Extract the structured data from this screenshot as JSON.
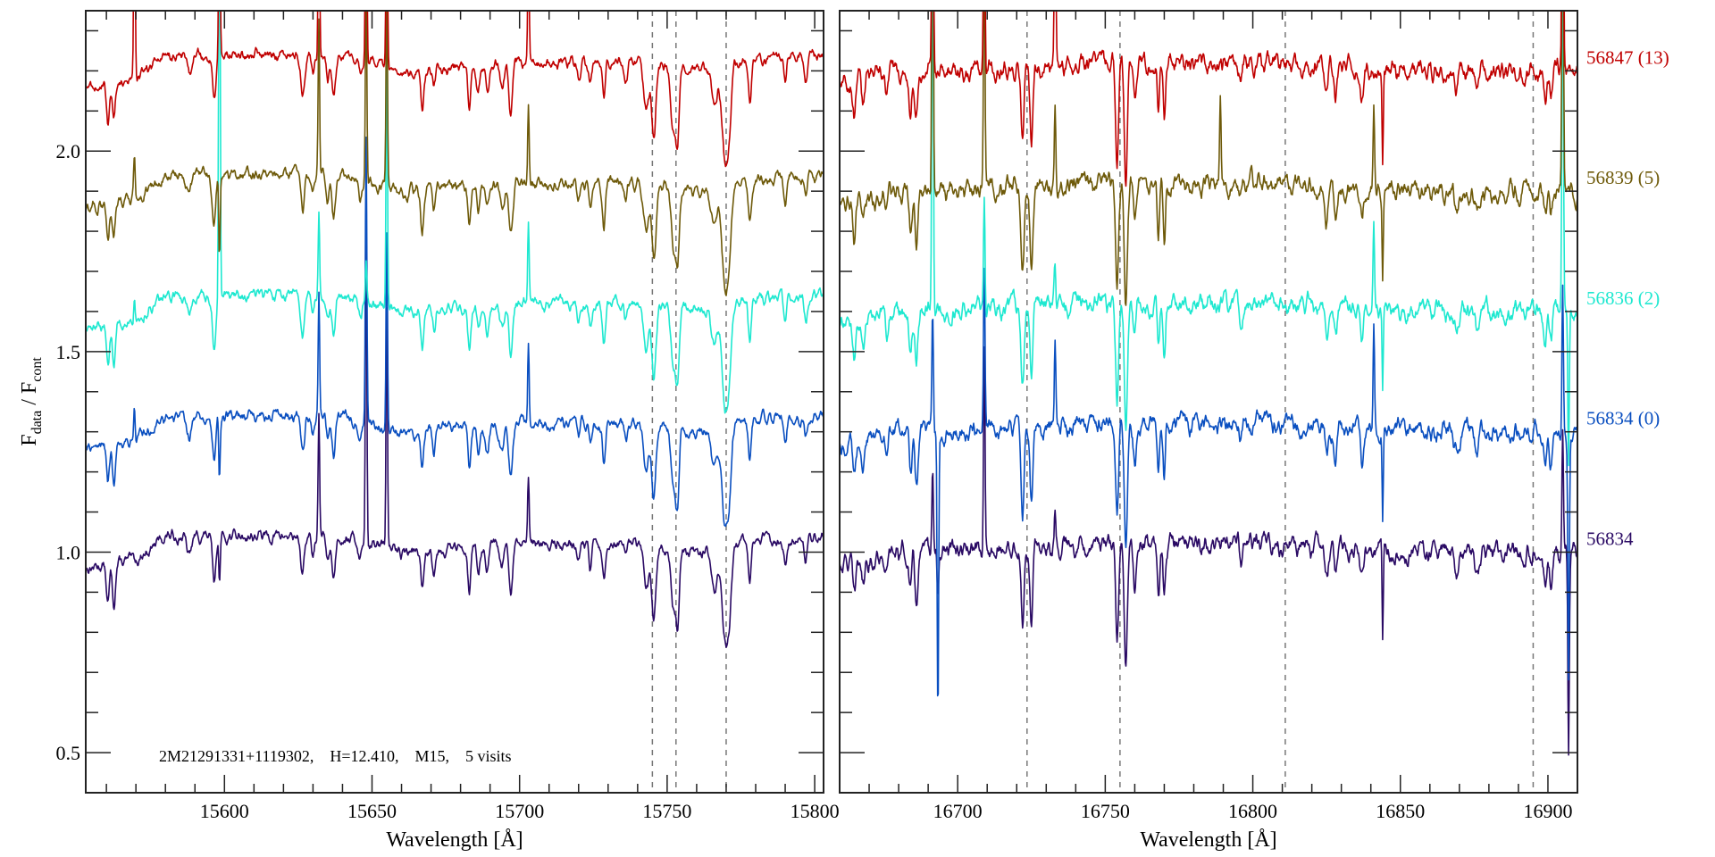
{
  "chart_data": {
    "type": "line",
    "title": "",
    "annotation": "2M21291331+1119302,    H=12.410,    M15,    5 visits",
    "ylabel": {
      "main": "F",
      "sub1": "data",
      "sep": " / F",
      "sub2": "cont"
    },
    "ylim": [
      0.4,
      2.35
    ],
    "yticks_major": [
      0.5,
      1.0,
      1.5,
      2.0
    ],
    "ytick_labels": [
      "0.5",
      "1.0",
      "1.5",
      "2.0"
    ],
    "ytick_minor_step": 0.1,
    "grid": false,
    "legend_placement": "right, beside each spectrum",
    "series": [
      {
        "name": "56834",
        "color": "#2a0a64",
        "offset": 0.0
      },
      {
        "name": "56834 (0)",
        "color": "#0a4fc0",
        "offset": 0.3
      },
      {
        "name": "56836 (2)",
        "color": "#1ee8d0",
        "offset": 0.6
      },
      {
        "name": "56839 (5)",
        "color": "#6e5a0a",
        "offset": 0.9
      },
      {
        "name": "56847 (13)",
        "color": "#c00000",
        "offset": 1.2
      }
    ],
    "panels": [
      {
        "xlabel": "Wavelength [Å]",
        "xlim": [
          15553,
          15803
        ],
        "xticks_major": [
          15600,
          15650,
          15700,
          15750,
          15800
        ],
        "xtick_labels": [
          "15600",
          "15650",
          "15700",
          "15750",
          "15800"
        ],
        "xtick_minor_step": 10,
        "show_ytick_labels": true,
        "dashed_lines": [
          15745,
          15753,
          15770
        ],
        "continuum": [
          [
            15553,
            0.96
          ],
          [
            15570,
            0.98
          ],
          [
            15580,
            1.04
          ],
          [
            15600,
            1.04
          ],
          [
            15640,
            1.04
          ],
          [
            15660,
            1.0
          ],
          [
            15700,
            1.02
          ],
          [
            15740,
            1.02
          ],
          [
            15760,
            1.0
          ],
          [
            15780,
            1.03
          ],
          [
            15803,
            1.04
          ]
        ],
        "absorption_lines": [
          [
            15560.5,
            0.1,
            0.5
          ],
          [
            15562.5,
            0.1,
            0.5
          ],
          [
            15588,
            0.05,
            0.8
          ],
          [
            15596.5,
            0.12,
            0.6
          ],
          [
            15626.5,
            0.1,
            0.6
          ],
          [
            15630,
            0.05,
            0.5
          ],
          [
            15635,
            0.06,
            0.5
          ],
          [
            15637,
            0.1,
            0.6
          ],
          [
            15646,
            0.04,
            0.6
          ],
          [
            15667,
            0.1,
            0.5
          ],
          [
            15671,
            0.05,
            0.5
          ],
          [
            15683,
            0.1,
            0.5
          ],
          [
            15686,
            0.06,
            0.5
          ],
          [
            15689,
            0.07,
            0.6
          ],
          [
            15694,
            0.06,
            0.7
          ],
          [
            15697,
            0.13,
            0.6
          ],
          [
            15720,
            0.04,
            0.5
          ],
          [
            15724,
            0.06,
            0.5
          ],
          [
            15728.6,
            0.1,
            0.5
          ],
          [
            15736,
            0.04,
            0.5
          ],
          [
            15743,
            0.12,
            0.9
          ],
          [
            15745.5,
            0.18,
            0.7
          ],
          [
            15752,
            0.14,
            0.7
          ],
          [
            15753.5,
            0.18,
            0.6
          ],
          [
            15766,
            0.1,
            1.0
          ],
          [
            15769.5,
            0.22,
            1.0
          ],
          [
            15771,
            0.14,
            0.8
          ],
          [
            15778,
            0.1,
            0.5
          ],
          [
            15790,
            0.07,
            0.5
          ],
          [
            15797,
            0.05,
            0.5
          ]
        ],
        "sky_lines": [
          [
            15569.5,
            [
              0,
              0.08,
              0.06,
              0.1,
              0.5
            ]
          ],
          [
            15598.3,
            [
              -0.1,
              -0.15,
              1.2,
              -0.2,
              0.5
            ]
          ],
          [
            15632,
            [
              0.3,
              0.3,
              0.2,
              0.4,
              0.5
            ]
          ],
          [
            15648,
            [
              0.8,
              0.7,
              0.1,
              0.5,
              0.6
            ]
          ],
          [
            15655,
            [
              0.6,
              0.5,
              0.6,
              0.5,
              0.5
            ]
          ],
          [
            15703,
            [
              0.15,
              0.2,
              0.2,
              0.2,
              0.3
            ]
          ]
        ]
      },
      {
        "xlabel": "Wavelength [Å]",
        "xlim": [
          16660,
          16910
        ],
        "xticks_major": [
          16700,
          16750,
          16800,
          16850,
          16900
        ],
        "xtick_labels": [
          "16700",
          "16750",
          "16800",
          "16850",
          "16900"
        ],
        "xtick_minor_step": 10,
        "show_ytick_labels": false,
        "dashed_lines": [
          16723.5,
          16755,
          16811,
          16895
        ],
        "continuum": [
          [
            16660,
            0.97
          ],
          [
            16680,
            1.0
          ],
          [
            16700,
            1.0
          ],
          [
            16740,
            1.02
          ],
          [
            16800,
            1.02
          ],
          [
            16850,
            1.0
          ],
          [
            16910,
            1.0
          ]
        ],
        "absorption_lines": [
          [
            16665,
            0.1,
            0.5
          ],
          [
            16668,
            0.06,
            0.5
          ],
          [
            16676,
            0.05,
            0.5
          ],
          [
            16684,
            0.1,
            0.5
          ],
          [
            16686,
            0.13,
            0.5
          ],
          [
            16722,
            0.2,
            0.5
          ],
          [
            16725,
            0.2,
            0.5
          ],
          [
            16754,
            0.25,
            0.5
          ],
          [
            16757,
            0.3,
            0.5
          ],
          [
            16760,
            0.1,
            0.5
          ],
          [
            16768,
            0.13,
            0.4
          ],
          [
            16770,
            0.14,
            0.4
          ],
          [
            16796,
            0.04,
            0.5
          ],
          [
            16825,
            0.07,
            0.5
          ],
          [
            16828,
            0.08,
            0.5
          ],
          [
            16837,
            0.08,
            0.5
          ],
          [
            16844,
            0.22,
            0.2
          ],
          [
            16869,
            0.05,
            0.6
          ],
          [
            16876,
            0.05,
            0.6
          ],
          [
            16899,
            0.07,
            0.5
          ],
          [
            16901,
            0.08,
            0.5
          ]
        ],
        "sky_lines": [
          [
            16691.5,
            [
              0.2,
              0.3,
              1.0,
              1.0,
              1.0
            ]
          ],
          [
            16693.3,
            [
              -0.1,
              -0.7,
              0,
              0,
              0
            ]
          ],
          [
            16709,
            [
              0.5,
              0.4,
              0.3,
              0.6,
              0.6
            ]
          ],
          [
            16733,
            [
              0.1,
              0.2,
              0.1,
              0.2,
              0.5
            ]
          ],
          [
            16789,
            [
              0,
              0,
              0,
              0.2,
              0
            ]
          ],
          [
            16841,
            [
              0,
              0.3,
              0.2,
              0.2,
              0
            ]
          ],
          [
            16905,
            [
              0.3,
              0.4,
              1.0,
              1.0,
              1.0
            ]
          ],
          [
            16907,
            [
              -0.5,
              -0.6,
              -0.4,
              0,
              0
            ]
          ]
        ]
      }
    ]
  }
}
